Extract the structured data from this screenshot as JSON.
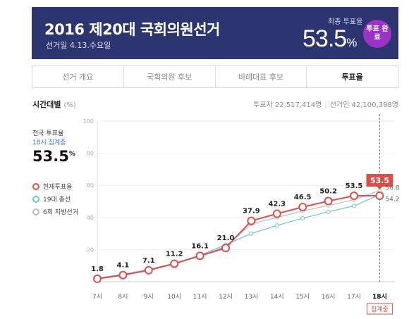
{
  "header": {
    "title": "2016 제20대 국회의원선거",
    "date": "선거일 4.13.수요일",
    "final_label": "최종 투표율",
    "final_value": "53.5",
    "final_unit": "%",
    "badge": "투표 완료"
  },
  "tabs": [
    {
      "label": "선거 개요",
      "active": false
    },
    {
      "label": "국회의원 후보",
      "active": false
    },
    {
      "label": "비례대표 후보",
      "active": false
    },
    {
      "label": "투표율",
      "active": true
    }
  ],
  "section": {
    "title": "시간대별",
    "unit": "(%)",
    "voters_label": "투표자",
    "voters_value": "22,517,414명",
    "electorate_label": "선거인",
    "electorate_value": "42,100,398명"
  },
  "side": {
    "national_label": "전국 투표율",
    "as_of": "18시 집계중",
    "rate_value": "53.5",
    "rate_unit": "%"
  },
  "colors": {
    "current": "#d9504a",
    "congress19": "#6cc3d6",
    "local6": "#bbbbbb",
    "banner": "#2c3570",
    "badge": "#9b34c6"
  },
  "chart_data": {
    "type": "line",
    "categories": [
      "7시",
      "8시",
      "9시",
      "10시",
      "11시",
      "12시",
      "13시",
      "14시",
      "15시",
      "16시",
      "17시",
      "18시"
    ],
    "ylim": [
      0,
      100
    ],
    "yticks": [
      0,
      20,
      40,
      60,
      80,
      100
    ],
    "ytick_labels": [
      "",
      "20",
      "40",
      "60",
      "80",
      "100"
    ],
    "series": [
      {
        "name": "현재투표율",
        "values": [
          1.8,
          4.1,
          7.1,
          11.2,
          16.1,
          21.0,
          37.9,
          42.3,
          46.5,
          50.2,
          53.5,
          53.5
        ]
      },
      {
        "name": "19대 총선",
        "values": [
          2.2,
          4.6,
          7.6,
          11.5,
          16.5,
          23.0,
          30.0,
          35.0,
          39.5,
          43.5,
          47.2,
          54.2
        ]
      },
      {
        "name": "6회 지방선거",
        "values": [
          2.0,
          4.4,
          7.3,
          11.0,
          16.0,
          22.0,
          36.0,
          40.0,
          44.0,
          47.5,
          51.0,
          56.8
        ]
      }
    ],
    "point_labels": [
      "1.8",
      "4.1",
      "7.1",
      "11.2",
      "16.1",
      "21.0",
      "37.9",
      "42.3",
      "46.5",
      "50.2",
      "53.5",
      ""
    ],
    "highlight_label": "53.5",
    "end_labels": [
      "56.8",
      "54.2"
    ],
    "current_marker": "집계중"
  }
}
